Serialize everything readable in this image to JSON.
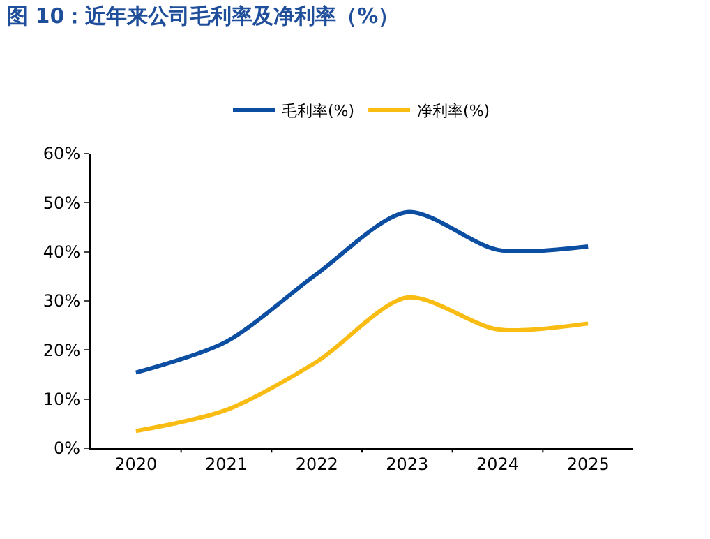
{
  "chart_data": {
    "type": "line",
    "title": "图 10：近年来公司毛利率及净利率（%）",
    "categories": [
      "2020",
      "2021",
      "2022",
      "2023",
      "2024",
      "2025"
    ],
    "series": [
      {
        "name": "毛利率(%)",
        "color": "#0b4ea2",
        "values": [
          15.4,
          21.7,
          35.5,
          48.1,
          40.4,
          41.1
        ]
      },
      {
        "name": "净利率(%)",
        "color": "#f8bc13",
        "values": [
          3.5,
          7.8,
          17.6,
          30.7,
          24.2,
          25.4
        ]
      }
    ],
    "ylim": [
      0,
      60
    ],
    "yticks": [
      {
        "value": 0,
        "label": "0%"
      },
      {
        "value": 10,
        "label": "10%"
      },
      {
        "value": 20,
        "label": "20%"
      },
      {
        "value": 30,
        "label": "30%"
      },
      {
        "value": 40,
        "label": "40%"
      },
      {
        "value": 50,
        "label": "50%"
      },
      {
        "value": 60,
        "label": "60%"
      }
    ],
    "legend": "top",
    "marker": "none",
    "line_style": "solid"
  }
}
